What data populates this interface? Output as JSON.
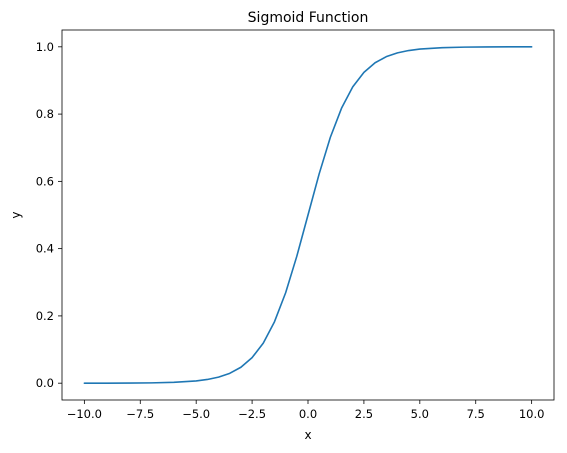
{
  "chart_data": {
    "type": "line",
    "title": "Sigmoid Function",
    "xlabel": "x",
    "ylabel": "y",
    "xlim": [
      -11,
      11
    ],
    "ylim": [
      -0.05,
      1.05
    ],
    "x_ticks": [
      -10.0,
      -7.5,
      -5.0,
      -2.5,
      0.0,
      2.5,
      5.0,
      7.5,
      10.0
    ],
    "x_tick_labels": [
      "−10.0",
      "−7.5",
      "−5.0",
      "−2.5",
      "0.0",
      "2.5",
      "5.0",
      "7.5",
      "10.0"
    ],
    "y_ticks": [
      0.0,
      0.2,
      0.4,
      0.6,
      0.8,
      1.0
    ],
    "y_tick_labels": [
      "0.0",
      "0.2",
      "0.4",
      "0.6",
      "0.8",
      "1.0"
    ],
    "grid": false,
    "series": [
      {
        "color": "#1f77b4",
        "x": [
          -10,
          -9,
          -8,
          -7,
          -6,
          -5,
          -4.5,
          -4,
          -3.5,
          -3,
          -2.5,
          -2,
          -1.5,
          -1,
          -0.5,
          0,
          0.5,
          1,
          1.5,
          2,
          2.5,
          3,
          3.5,
          4,
          4.5,
          5,
          6,
          7,
          8,
          9,
          10
        ],
        "y": [
          0.0,
          0.0001,
          0.0003,
          0.0009,
          0.0025,
          0.0067,
          0.011,
          0.018,
          0.0293,
          0.0474,
          0.0759,
          0.1192,
          0.1824,
          0.2689,
          0.3775,
          0.5,
          0.6225,
          0.7311,
          0.8176,
          0.8808,
          0.9241,
          0.9526,
          0.9707,
          0.982,
          0.989,
          0.9933,
          0.9975,
          0.9991,
          0.9997,
          0.9999,
          1.0
        ]
      }
    ]
  }
}
